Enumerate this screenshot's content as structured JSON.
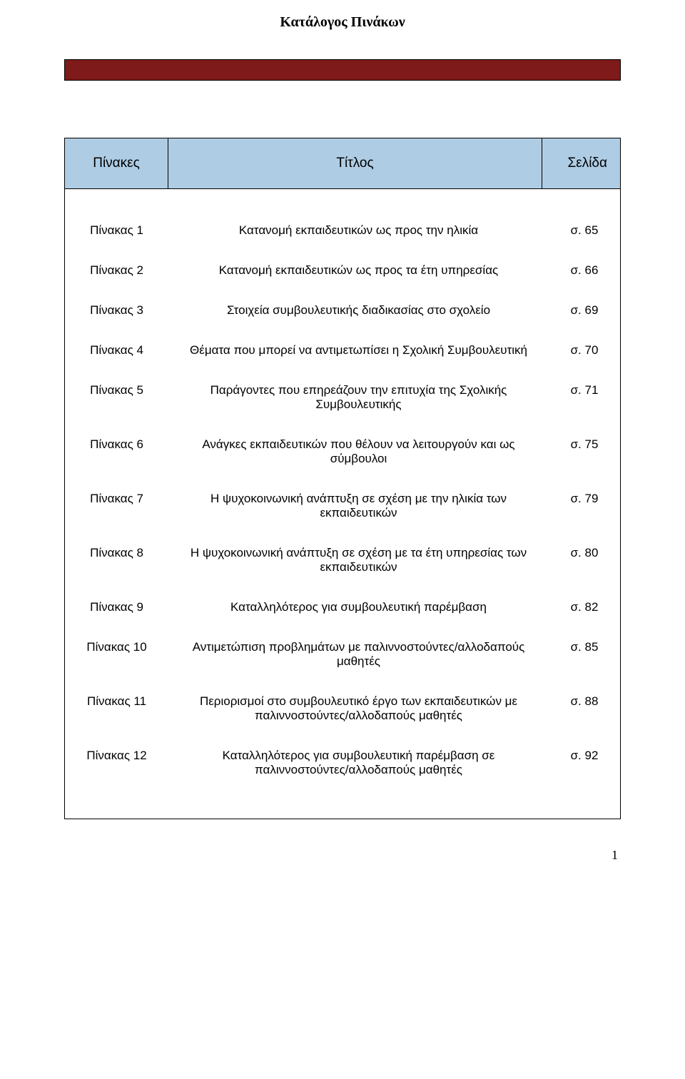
{
  "page_title": "Κατάλογος Πινάκων",
  "top_bar_color": "#7e1a1a",
  "header_bg_color": "#aecce4",
  "headers": {
    "col1": "Πίνακες",
    "col2": "Τίτλος",
    "col3": "Σελίδα"
  },
  "rows": [
    {
      "label": "Πίνακας 1",
      "title": "Κατανομή εκπαιδευτικών ως προς την ηλικία",
      "page": "σ. 65"
    },
    {
      "label": "Πίνακας 2",
      "title": "Κατανομή εκπαιδευτικών ως προς τα έτη υπηρεσίας",
      "page": "σ. 66"
    },
    {
      "label": "Πίνακας 3",
      "title": "Στοιχεία συμβουλευτικής διαδικασίας στο σχολείο",
      "page": "σ. 69"
    },
    {
      "label": "Πίνακας 4",
      "title": "Θέματα που μπορεί να αντιμετωπίσει η Σχολική Συμβουλευτική",
      "page": "σ. 70"
    },
    {
      "label": "Πίνακας 5",
      "title": "Παράγοντες που επηρεάζουν την επιτυχία της Σχολικής Συμβουλευτικής",
      "page": "σ. 71"
    },
    {
      "label": "Πίνακας 6",
      "title": "Ανάγκες εκπαιδευτικών που θέλουν να λειτουργούν και ως σύμβουλοι",
      "page": "σ. 75"
    },
    {
      "label": "Πίνακας 7",
      "title": "Η ψυχοκοινωνική ανάπτυξη σε σχέση με την ηλικία των εκπαιδευτικών",
      "page": "σ. 79"
    },
    {
      "label": "Πίνακας 8",
      "title": "Η ψυχοκοινωνική ανάπτυξη σε σχέση με τα έτη υπηρεσίας των εκπαιδευτικών",
      "page": "σ. 80"
    },
    {
      "label": "Πίνακας 9",
      "title": "Καταλληλότερος για συμβουλευτική παρέμβαση",
      "page": "σ. 82"
    },
    {
      "label": "Πίνακας 10",
      "title": "Αντιμετώπιση προβλημάτων με παλιννοστούντες/αλλοδαπούς μαθητές",
      "page": "σ. 85"
    },
    {
      "label": "Πίνακας 11",
      "title": "Περιορισμοί στο συμβουλευτικό έργο των εκπαιδευτικών με παλιννοστούντες/αλλοδαπούς μαθητές",
      "page": "σ. 88"
    },
    {
      "label": "Πίνακας 12",
      "title": "Καταλληλότερος για συμβουλευτική παρέμβαση σε παλιννοστούντες/αλλοδαπούς μαθητές",
      "page": "σ. 92"
    }
  ],
  "page_number": "1"
}
